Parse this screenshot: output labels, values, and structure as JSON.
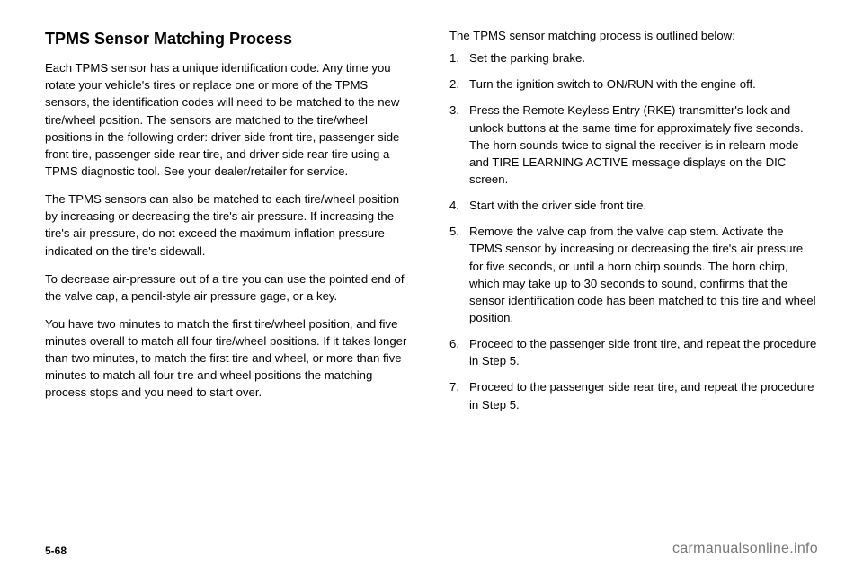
{
  "heading": "TPMS Sensor Matching Process",
  "left": {
    "p1": "Each TPMS sensor has a unique identification code. Any time you rotate your vehicle's tires or replace one or more of the TPMS sensors, the identification codes will need to be matched to the new tire/wheel position. The sensors are matched to the tire/wheel positions in the following order: driver side front tire, passenger side front tire, passenger side rear tire, and driver side rear tire using a TPMS diagnostic tool. See your dealer/retailer for service.",
    "p2": "The TPMS sensors can also be matched to each tire/wheel position by increasing or decreasing the tire's air pressure. If increasing the tire's air pressure, do not exceed the maximum inflation pressure indicated on the tire's sidewall.",
    "p3": "To decrease air-pressure out of a tire you can use the pointed end of the valve cap, a pencil-style air pressure gage, or a key.",
    "p4": "You have two minutes to match the first tire/wheel position, and five minutes overall to match all four tire/wheel positions. If it takes longer than two minutes, to match the first tire and wheel, or more than five minutes to match all four tire and wheel positions the matching process stops and you need to start over."
  },
  "right": {
    "intro": "The TPMS sensor matching process is outlined below:",
    "steps": [
      "Set the parking brake.",
      "Turn the ignition switch to ON/RUN with the engine off.",
      "Press the Remote Keyless Entry (RKE) transmitter's lock and unlock buttons at the same time for approximately five seconds. The horn sounds twice to signal the receiver is in relearn mode and TIRE LEARNING ACTIVE message displays on the DIC screen.",
      "Start with the driver side front tire.",
      "Remove the valve cap from the valve cap stem. Activate the TPMS sensor by increasing or decreasing the tire's air pressure for five seconds, or until a horn chirp sounds. The horn chirp, which may take up to 30 seconds to sound, confirms that the sensor identification code has been matched to this tire and wheel position.",
      "Proceed to the passenger side front tire, and repeat the procedure in Step 5.",
      "Proceed to the passenger side rear tire, and repeat the procedure in Step 5."
    ]
  },
  "footer": {
    "pageNumber": "5-68",
    "watermark": "carmanualsonline.info"
  }
}
